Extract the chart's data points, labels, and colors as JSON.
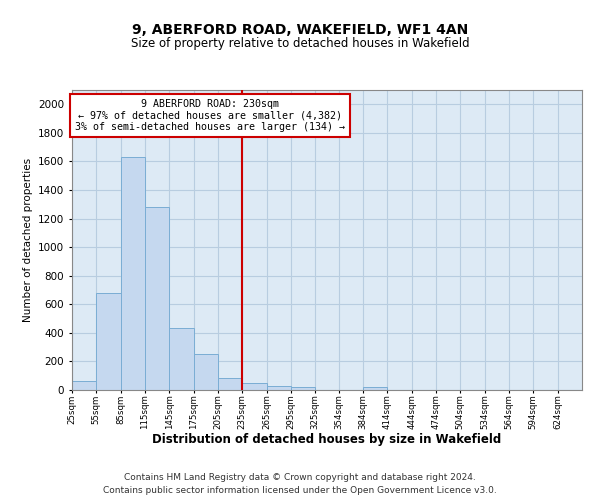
{
  "title": "9, ABERFORD ROAD, WAKEFIELD, WF1 4AN",
  "subtitle": "Size of property relative to detached houses in Wakefield",
  "xlabel": "Distribution of detached houses by size in Wakefield",
  "ylabel": "Number of detached properties",
  "footer_line1": "Contains HM Land Registry data © Crown copyright and database right 2024.",
  "footer_line2": "Contains public sector information licensed under the Open Government Licence v3.0.",
  "annotation_title": "9 ABERFORD ROAD: 230sqm",
  "annotation_line1": "← 97% of detached houses are smaller (4,382)",
  "annotation_line2": "3% of semi-detached houses are larger (134) →",
  "bar_lefts": [
    25,
    55,
    85,
    115,
    145,
    175,
    205,
    235,
    265,
    295,
    325,
    354,
    384,
    414,
    444,
    474,
    504,
    534,
    564,
    594
  ],
  "bar_widths": [
    30,
    30,
    30,
    30,
    30,
    30,
    30,
    30,
    30,
    30,
    29,
    30,
    30,
    30,
    30,
    30,
    30,
    30,
    30,
    30
  ],
  "bar_values": [
    65,
    680,
    1630,
    1280,
    435,
    255,
    85,
    50,
    30,
    20,
    0,
    0,
    20,
    0,
    0,
    0,
    0,
    0,
    0,
    0
  ],
  "bar_color": "#c5d8ef",
  "bar_edge_color": "#7aadd4",
  "vline_color": "#cc0000",
  "vline_x": 235,
  "annotation_box_color": "#cc0000",
  "grid_color": "#b8cde0",
  "background_color": "#ddeaf5",
  "ylim": [
    0,
    2100
  ],
  "yticks": [
    0,
    200,
    400,
    600,
    800,
    1000,
    1200,
    1400,
    1600,
    1800,
    2000
  ],
  "xtick_positions": [
    25,
    55,
    85,
    115,
    145,
    175,
    205,
    235,
    265,
    295,
    325,
    354,
    384,
    414,
    444,
    474,
    504,
    534,
    564,
    594,
    624
  ],
  "xtick_labels": [
    "25sqm",
    "55sqm",
    "85sqm",
    "115sqm",
    "145sqm",
    "175sqm",
    "205sqm",
    "235sqm",
    "265sqm",
    "295sqm",
    "325sqm",
    "354sqm",
    "384sqm",
    "414sqm",
    "444sqm",
    "474sqm",
    "504sqm",
    "534sqm",
    "564sqm",
    "594sqm",
    "624sqm"
  ]
}
